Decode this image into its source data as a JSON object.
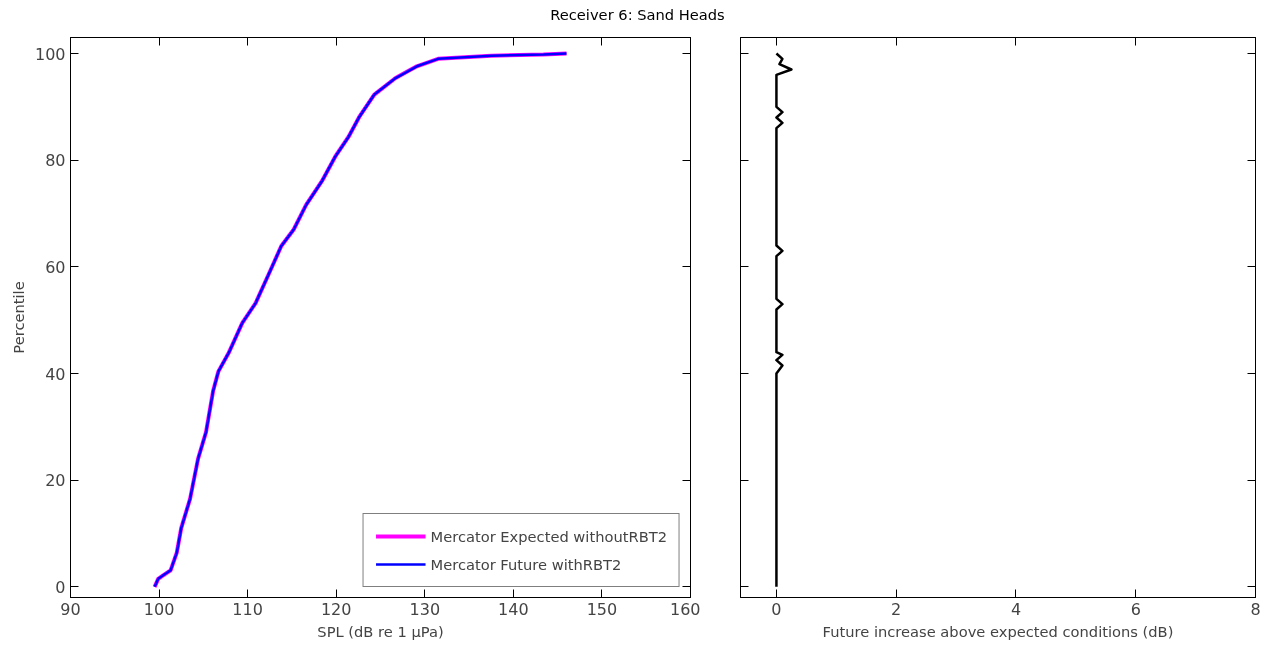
{
  "chart_data": [
    {
      "type": "line",
      "title": "Receiver 6: Sand Heads",
      "xlabel": "SPL (dB re 1 μPa)",
      "ylabel": "Percentile",
      "xlim": [
        90,
        160
      ],
      "xticks": [
        90,
        100,
        110,
        120,
        130,
        140,
        150,
        160
      ],
      "ylim": [
        -2,
        103
      ],
      "yticks": [
        0,
        20,
        40,
        60,
        80,
        100
      ],
      "grid": false,
      "legend": "bottom right",
      "series": [
        {
          "name": "Mercator Expected withoutRBT2",
          "color": "#ff00ff",
          "x": [
            99.5,
            99.9,
            100.5,
            101.3,
            102.0,
            102.5,
            103.5,
            104.4,
            105.3,
            106.1,
            106.7,
            107.9,
            109.4,
            110.9,
            112.4,
            113.8,
            115.2,
            116.6,
            118.4,
            119.9,
            121.4,
            122.6,
            124.3,
            126.7,
            129.1,
            131.5,
            137.5,
            143.4,
            146
          ],
          "values": [
            0,
            1.5,
            2.2,
            3.1,
            6.4,
            11,
            16.5,
            24,
            29,
            36.7,
            40.4,
            44,
            49.5,
            53.2,
            58.7,
            63.9,
            67,
            71.6,
            76.1,
            80.7,
            84.4,
            88.1,
            92.3,
            95.4,
            97.6,
            99,
            99.6,
            99.8,
            100
          ]
        },
        {
          "name": "Mercator Future withRBT2",
          "color": "#0000ff",
          "x": [
            99.5,
            99.9,
            100.5,
            101.3,
            102.0,
            102.5,
            103.5,
            104.4,
            105.3,
            106.1,
            106.7,
            107.9,
            109.4,
            110.9,
            112.4,
            113.8,
            115.2,
            116.6,
            118.4,
            119.9,
            121.4,
            122.6,
            124.3,
            126.7,
            129.1,
            131.5,
            137.5,
            143.4,
            146
          ],
          "values": [
            0,
            1.5,
            2.2,
            3.1,
            6.4,
            11,
            16.5,
            24,
            29,
            36.7,
            40.4,
            44,
            49.5,
            53.2,
            58.7,
            63.9,
            67,
            71.6,
            76.1,
            80.7,
            84.4,
            88.1,
            92.3,
            95.4,
            97.6,
            99,
            99.6,
            99.8,
            100
          ]
        }
      ]
    },
    {
      "type": "line",
      "xlabel": "Future increase above expected conditions (dB)",
      "xlim": [
        -0.6,
        8
      ],
      "xticks": [
        0,
        2,
        4,
        6,
        8
      ],
      "ylim": [
        -2,
        103
      ],
      "yticks": [
        0,
        20,
        40,
        60,
        80,
        100
      ],
      "grid": false,
      "tick_labels": "x",
      "series": [
        {
          "color": "#000000",
          "x": [
            0,
            0,
            0.1,
            0,
            0.1,
            0,
            0,
            0.1,
            0,
            0,
            0.1,
            0,
            0,
            0.1,
            0,
            0.1,
            0,
            0,
            0.25,
            0.05,
            0.1,
            0
          ],
          "values": [
            0,
            40,
            41.5,
            42.5,
            43.5,
            44,
            52,
            53,
            54,
            62,
            63,
            64,
            86,
            87,
            88,
            89,
            90,
            96,
            97,
            98,
            99,
            100
          ]
        }
      ]
    }
  ]
}
